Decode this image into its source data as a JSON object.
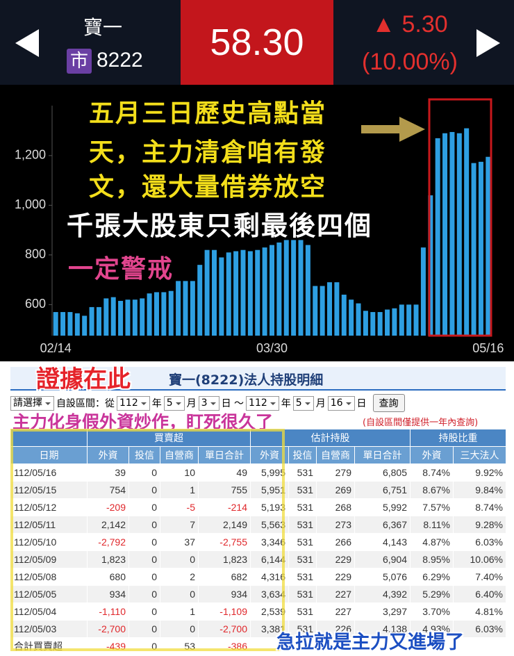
{
  "header": {
    "name": "寶一",
    "market": "市",
    "code": "8222",
    "price": "58.30",
    "change": "▲ 5.30",
    "change_pct": "(10.00%)"
  },
  "chart_data": {
    "type": "bar",
    "color": "#2e9fe2",
    "grid": false,
    "categories": [
      "02/14",
      null,
      null,
      null,
      null,
      null,
      null,
      null,
      null,
      null,
      null,
      null,
      null,
      null,
      null,
      null,
      null,
      null,
      null,
      null,
      null,
      null,
      null,
      null,
      null,
      null,
      null,
      null,
      null,
      null,
      "03/30",
      null,
      null,
      null,
      null,
      null,
      null,
      null,
      null,
      null,
      null,
      null,
      null,
      null,
      null,
      null,
      null,
      null,
      null,
      null,
      null,
      null,
      null,
      null,
      null,
      null,
      null,
      null,
      null,
      null,
      "05/16"
    ],
    "values": [
      570,
      570,
      570,
      565,
      555,
      590,
      590,
      625,
      630,
      615,
      620,
      620,
      625,
      645,
      650,
      650,
      655,
      695,
      695,
      695,
      760,
      820,
      820,
      790,
      810,
      815,
      820,
      815,
      820,
      830,
      840,
      850,
      860,
      860,
      860,
      840,
      675,
      675,
      690,
      690,
      640,
      620,
      605,
      575,
      570,
      570,
      580,
      585,
      600,
      600,
      600,
      830,
      1040,
      1270,
      1290,
      1295,
      1290,
      1310,
      1170,
      1175,
      1195
    ],
    "ylim": [
      475,
      1390
    ],
    "yticks": [
      600,
      800,
      {
        "value": 1000,
        "label": "1,000"
      },
      {
        "value": 1200,
        "label": "1,200"
      }
    ],
    "annotations": [
      "五月三日歷史高點當",
      "天，主力清倉咱有發",
      "文，還大量借券放空",
      "千張大股東只剩最後四個",
      "一定警戒"
    ]
  },
  "table": {
    "title": "寶一(8222)法人持股明細",
    "form": [
      "請選擇",
      "自設區間：從",
      "112",
      "年",
      "5",
      "月",
      "3",
      "日 ～",
      "112",
      "年",
      "5",
      "月",
      "16",
      "日",
      "查詢"
    ],
    "note": "(自設區間僅提供一年內查詢)",
    "group_headers": [
      "買賣超",
      "估計持股",
      "持股比重"
    ],
    "columns": [
      "日期",
      "外資",
      "投信",
      "自營商",
      "單日合計",
      "外資",
      "投信",
      "自營商",
      "單日合計",
      "外資",
      "三大法人"
    ],
    "rows": [
      [
        "112/05/16",
        "39",
        "0",
        "10",
        "49",
        "5,995",
        "531",
        "279",
        "6,805",
        "8.74%",
        "9.92%"
      ],
      [
        "112/05/15",
        "754",
        "0",
        "1",
        "755",
        "5,951",
        "531",
        "269",
        "6,751",
        "8.67%",
        "9.84%"
      ],
      [
        "112/05/12",
        "-209",
        "0",
        "-5",
        "-214",
        "5,193",
        "531",
        "268",
        "5,992",
        "7.57%",
        "8.74%"
      ],
      [
        "112/05/11",
        "2,142",
        "0",
        "7",
        "2,149",
        "5,563",
        "531",
        "273",
        "6,367",
        "8.11%",
        "9.28%"
      ],
      [
        "112/05/10",
        "-2,792",
        "0",
        "37",
        "-2,755",
        "3,346",
        "531",
        "266",
        "4,143",
        "4.87%",
        "6.03%"
      ],
      [
        "112/05/09",
        "1,823",
        "0",
        "0",
        "1,823",
        "6,144",
        "531",
        "229",
        "6,904",
        "8.95%",
        "10.06%"
      ],
      [
        "112/05/08",
        "680",
        "0",
        "2",
        "682",
        "4,316",
        "531",
        "229",
        "5,076",
        "6.29%",
        "7.40%"
      ],
      [
        "112/05/05",
        "934",
        "0",
        "0",
        "934",
        "3,634",
        "531",
        "227",
        "4,392",
        "5.29%",
        "6.40%"
      ],
      [
        "112/05/04",
        "-1,110",
        "0",
        "1",
        "-1,109",
        "2,539",
        "531",
        "227",
        "3,297",
        "3.70%",
        "4.81%"
      ],
      [
        "112/05/03",
        "-2,700",
        "0",
        "0",
        "-2,700",
        "3,381",
        "531",
        "226",
        "4,138",
        "4.93%",
        "6.03%"
      ]
    ],
    "footer": [
      "合計買賣超",
      "-439",
      "0",
      "53",
      "-386"
    ]
  },
  "overlays": {
    "evidence": "證據在此",
    "claim": "主力化身假外資炒作，盯死很久了",
    "conclusion": "急拉就是主力又進場了"
  }
}
